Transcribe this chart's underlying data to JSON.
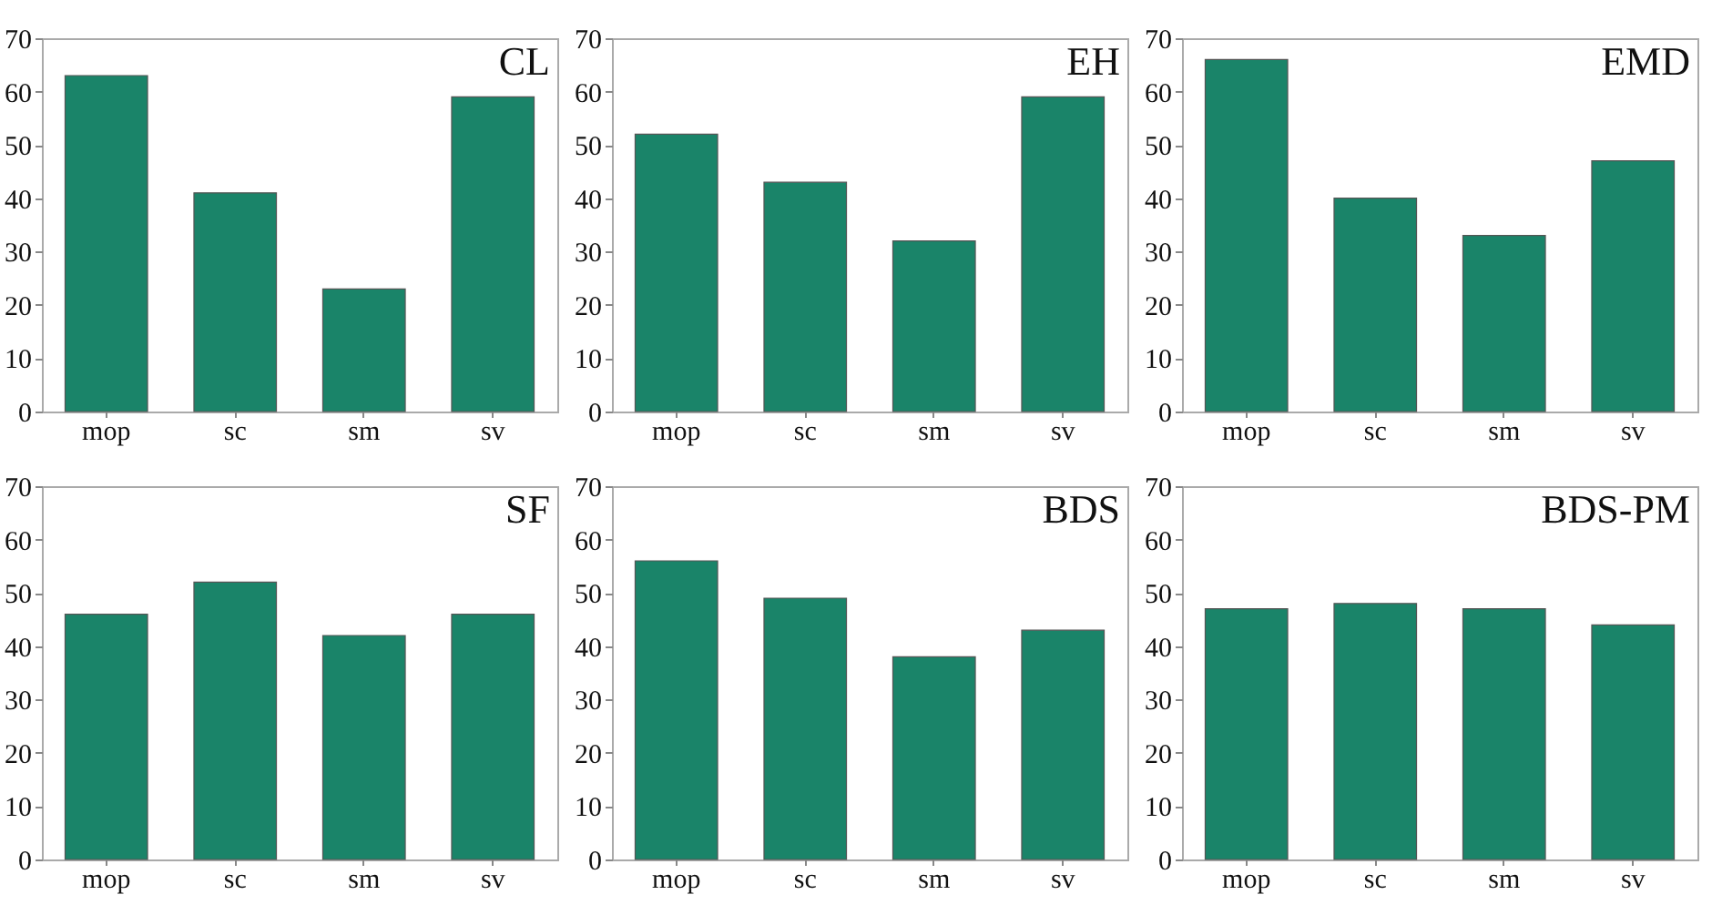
{
  "chart_data": [
    {
      "type": "bar",
      "title": "CL",
      "categories": [
        "mop",
        "sc",
        "sm",
        "sv"
      ],
      "values": [
        63,
        41,
        23,
        59
      ],
      "color": "#1a8469",
      "ylim": [
        0,
        70
      ],
      "yticks": [
        0,
        10,
        20,
        30,
        40,
        50,
        60,
        70
      ]
    },
    {
      "type": "bar",
      "title": "EH",
      "categories": [
        "mop",
        "sc",
        "sm",
        "sv"
      ],
      "values": [
        52,
        43,
        32,
        59
      ],
      "color": "#1a8469",
      "ylim": [
        0,
        70
      ],
      "yticks": [
        0,
        10,
        20,
        30,
        40,
        50,
        60,
        70
      ]
    },
    {
      "type": "bar",
      "title": "EMD",
      "categories": [
        "mop",
        "sc",
        "sm",
        "sv"
      ],
      "values": [
        66,
        40,
        33,
        47
      ],
      "color": "#1a8469",
      "ylim": [
        0,
        70
      ],
      "yticks": [
        0,
        10,
        20,
        30,
        40,
        50,
        60,
        70
      ]
    },
    {
      "type": "bar",
      "title": "SF",
      "categories": [
        "mop",
        "sc",
        "sm",
        "sv"
      ],
      "values": [
        46,
        52,
        42,
        46
      ],
      "color": "#1a8469",
      "ylim": [
        0,
        70
      ],
      "yticks": [
        0,
        10,
        20,
        30,
        40,
        50,
        60,
        70
      ]
    },
    {
      "type": "bar",
      "title": "BDS",
      "categories": [
        "mop",
        "sc",
        "sm",
        "sv"
      ],
      "values": [
        56,
        49,
        38,
        43
      ],
      "color": "#1a8469",
      "ylim": [
        0,
        70
      ],
      "yticks": [
        0,
        10,
        20,
        30,
        40,
        50,
        60,
        70
      ]
    },
    {
      "type": "bar",
      "title": "BDS-PM",
      "categories": [
        "mop",
        "sc",
        "sm",
        "sv"
      ],
      "values": [
        47,
        48,
        47,
        44
      ],
      "color": "#1a8469",
      "ylim": [
        0,
        70
      ],
      "yticks": [
        0,
        10,
        20,
        30,
        40,
        50,
        60,
        70
      ]
    }
  ]
}
